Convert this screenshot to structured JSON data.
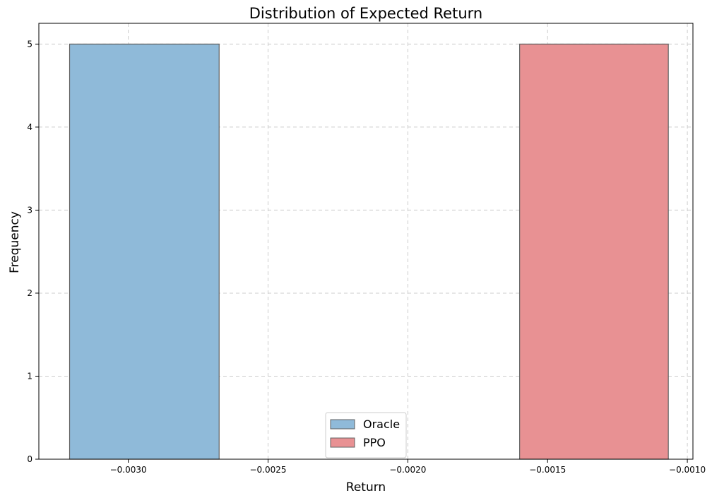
{
  "chart_data": {
    "type": "bar",
    "title": "Distribution of Expected Return",
    "xlabel": "Return",
    "ylabel": "Frequency",
    "xlim": [
      -0.00332,
      -0.00098
    ],
    "ylim": [
      0,
      5.25
    ],
    "grid": true,
    "legend_position": "bottom-center",
    "x_ticks": [
      -0.003,
      -0.0025,
      -0.002,
      -0.0015,
      -0.001
    ],
    "x_tick_labels": [
      "−0.0030",
      "−0.0025",
      "−0.0020",
      "−0.0015",
      "−0.0010"
    ],
    "y_ticks": [
      0,
      1,
      2,
      3,
      4,
      5
    ],
    "y_tick_labels": [
      "0",
      "1",
      "2",
      "3",
      "4",
      "5"
    ],
    "series": [
      {
        "name": "Oracle",
        "color": "#8fbad9",
        "edge_color": "#606060",
        "bins": [
          {
            "x0": -0.00321,
            "x1": -0.002675,
            "value": 5
          }
        ]
      },
      {
        "name": "PPO",
        "color": "#e89193",
        "edge_color": "#606060",
        "bins": [
          {
            "x0": -0.0016,
            "x1": -0.001068,
            "value": 5
          }
        ]
      }
    ]
  }
}
